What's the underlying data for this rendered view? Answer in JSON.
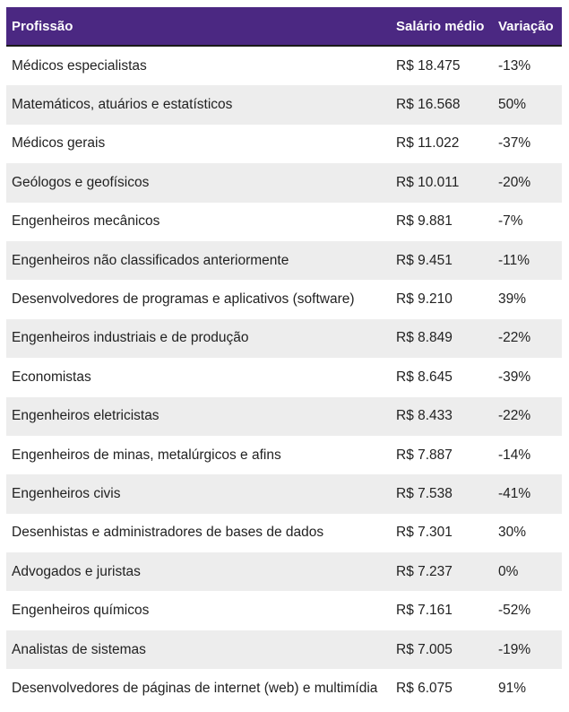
{
  "table": {
    "headers": {
      "profissao": "Profissão",
      "salario": "Salário médio",
      "variacao": "Variação"
    },
    "rows": [
      {
        "profissao": "Médicos especialistas",
        "salario": "R$ 18.475",
        "variacao": "-13%"
      },
      {
        "profissao": "Matemáticos, atuários e estatísticos",
        "salario": "R$ 16.568",
        "variacao": "50%"
      },
      {
        "profissao": "Médicos gerais",
        "salario": "R$ 11.022",
        "variacao": "-37%"
      },
      {
        "profissao": "Geólogos e geofísicos",
        "salario": "R$ 10.011",
        "variacao": "-20%"
      },
      {
        "profissao": "Engenheiros mecânicos",
        "salario": "R$ 9.881",
        "variacao": "-7%"
      },
      {
        "profissao": "Engenheiros não classificados anteriormente",
        "salario": "R$ 9.451",
        "variacao": "-11%"
      },
      {
        "profissao": "Desenvolvedores de programas e aplicativos (software)",
        "salario": "R$ 9.210",
        "variacao": "39%"
      },
      {
        "profissao": "Engenheiros industriais e de produção",
        "salario": "R$ 8.849",
        "variacao": "-22%"
      },
      {
        "profissao": "Economistas",
        "salario": "R$ 8.645",
        "variacao": "-39%"
      },
      {
        "profissao": "Engenheiros eletricistas",
        "salario": "R$ 8.433",
        "variacao": "-22%"
      },
      {
        "profissao": "Engenheiros de minas, metalúrgicos e afins",
        "salario": "R$ 7.887",
        "variacao": "-14%"
      },
      {
        "profissao": "Engenheiros civis",
        "salario": "R$ 7.538",
        "variacao": "-41%"
      },
      {
        "profissao": "Desenhistas e administradores de bases de dados",
        "salario": "R$ 7.301",
        "variacao": "30%"
      },
      {
        "profissao": "Advogados e juristas",
        "salario": "R$ 7.237",
        "variacao": "0%"
      },
      {
        "profissao": "Engenheiros químicos",
        "salario": "R$ 7.161",
        "variacao": "-52%"
      },
      {
        "profissao": "Analistas de sistemas",
        "salario": "R$ 7.005",
        "variacao": "-19%"
      },
      {
        "profissao": "Desenvolvedores de páginas de internet (web) e multimídia",
        "salario": "R$ 6.075",
        "variacao": "91%"
      }
    ]
  },
  "colors": {
    "header_bg": "#4b2882",
    "header_text": "#ffffff",
    "row_alt_bg": "#ededed"
  }
}
